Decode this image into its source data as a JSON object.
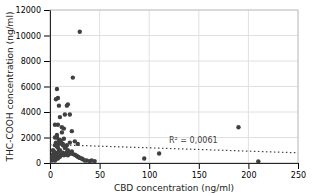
{
  "chart_data": {
    "type": "scatter",
    "xlabel": "CBD concentration (ng/ml)",
    "ylabel": "THC-COOH concentration (ng/ml)",
    "series": [
      {
        "type": "scatter",
        "color": "#404040",
        "x": [
          2,
          2,
          3,
          3,
          4,
          4,
          5,
          5,
          5,
          6,
          6,
          6,
          7,
          7,
          7,
          7,
          8,
          8,
          8,
          8,
          9,
          9,
          9,
          10,
          10,
          10,
          11,
          11,
          12,
          12,
          13,
          13,
          14,
          14,
          15,
          15,
          16,
          16,
          17,
          17,
          18,
          19,
          20,
          20,
          21,
          22,
          23,
          25,
          26,
          27,
          28,
          29,
          30,
          32,
          33,
          35,
          37,
          40,
          42,
          45,
          3,
          5,
          6,
          7,
          8,
          9,
          10,
          12,
          14,
          15,
          17,
          18,
          20,
          22,
          25,
          28,
          30,
          5,
          7,
          9,
          11,
          13,
          15,
          18,
          20,
          23,
          95,
          110,
          190,
          210
        ],
        "values": [
          200,
          500,
          300,
          700,
          400,
          900,
          200,
          600,
          1400,
          300,
          800,
          1600,
          400,
          700,
          1300,
          2200,
          350,
          700,
          1200,
          3000,
          450,
          900,
          1500,
          500,
          1000,
          1800,
          600,
          1700,
          700,
          2400,
          800,
          1500,
          600,
          1900,
          650,
          1200,
          750,
          1300,
          850,
          1400,
          600,
          700,
          750,
          1600,
          800,
          900,
          700,
          650,
          600,
          550,
          500,
          450,
          400,
          350,
          300,
          200,
          200,
          150,
          200,
          150,
          1000,
          2000,
          5000,
          5800,
          5100,
          4500,
          3600,
          2800,
          2700,
          3800,
          4500,
          4600,
          3800,
          2500,
          1700,
          1500,
          10300,
          3000,
          2000,
          1800,
          1600,
          1400,
          1200,
          1000,
          800,
          6700,
          350,
          750,
          2800,
          130
        ]
      },
      {
        "type": "line",
        "line_style": "dotted",
        "color": "#404040",
        "x": [
          0,
          250
        ],
        "values": [
          1450,
          800
        ]
      }
    ],
    "annotations": [
      {
        "text": "R² = 0,0061",
        "x": 120,
        "y": 1750
      }
    ],
    "xlim": [
      0,
      250
    ],
    "ylim": [
      0,
      12000
    ],
    "xticks": [
      0,
      50,
      100,
      150,
      200,
      250
    ],
    "yticks": [
      0,
      2000,
      4000,
      6000,
      8000,
      10000,
      12000
    ],
    "grid": true
  }
}
